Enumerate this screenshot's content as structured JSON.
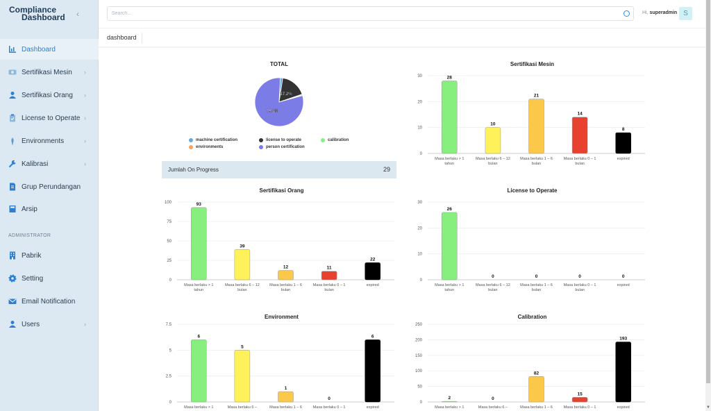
{
  "brand": {
    "line1": "Compliance",
    "line2": "Dashboard"
  },
  "sidebar": {
    "items": [
      {
        "label": "Dashboard",
        "icon": "bar-chart-icon",
        "active": true,
        "chevron": false
      },
      {
        "label": "Sertifikasi Mesin",
        "icon": "machine-icon",
        "chevron": true
      },
      {
        "label": "Sertifikasi Orang",
        "icon": "user-icon",
        "chevron": true
      },
      {
        "label": "License to Operate",
        "icon": "clipboard-icon",
        "chevron": true
      },
      {
        "label": "Environments",
        "icon": "leaf-icon",
        "chevron": true
      },
      {
        "label": "Kalibrasi",
        "icon": "wrench-icon",
        "chevron": true
      },
      {
        "label": "Grup Perundangan",
        "icon": "document-icon",
        "chevron": false
      },
      {
        "label": "Arsip",
        "icon": "archive-icon",
        "chevron": false
      }
    ],
    "admin_title": "ADMINISTRATOR",
    "admin_items": [
      {
        "label": "Pabrik",
        "icon": "building-icon",
        "chevron": false
      },
      {
        "label": "Setting",
        "icon": "gear-icon",
        "chevron": false
      },
      {
        "label": "Email Notification",
        "icon": "envelope-icon",
        "chevron": false
      },
      {
        "label": "Users",
        "icon": "user-icon",
        "chevron": true
      }
    ]
  },
  "topbar": {
    "search_placeholder": "Search...",
    "greeting": "Hi,",
    "username": "superadmin",
    "avatar_letter": "S"
  },
  "breadcrumb": "dashboard",
  "progress": {
    "label": "Jumlah On Progress",
    "value": "29"
  },
  "colors": {
    "green": "#86ef7e",
    "yellow": "#fff15a",
    "orange": "#fbc84a",
    "red": "#e8412f",
    "black": "#000000",
    "accent": "#2d7fd3"
  },
  "chart_data": [
    {
      "type": "pie",
      "title": "TOTAL",
      "slices": [
        {
          "name": "machine certification",
          "value": 1.6,
          "color": "#6aa7d8"
        },
        {
          "name": "license to operate",
          "value": 17.2,
          "color": "#333333",
          "label": "17.2%"
        },
        {
          "name": "calibration",
          "value": 0.3,
          "color": "#86ef7e"
        },
        {
          "name": "environments",
          "value": 0.6,
          "color": "#f7a35c"
        },
        {
          "name": "person certification",
          "value": 79.3,
          "color": "#7c7ce6",
          "label": "79.3%"
        }
      ]
    },
    {
      "type": "bar",
      "title": "Sertifikasi Mesin",
      "categories": [
        "Masa berlaku > 1 tahun",
        "Masa berlaku 6 – 12 bulan",
        "Masa berlaku 1 – 6 bulan",
        "Masa berlaku 0 – 1 bulan",
        "expired"
      ],
      "values": [
        28,
        10,
        21,
        14,
        8
      ],
      "ylim": [
        0,
        30
      ],
      "yticks": [
        0,
        10,
        20,
        30
      ]
    },
    {
      "type": "bar",
      "title": "Sertifikasi Orang",
      "categories": [
        "Masa berlaku > 1 tahun",
        "Masa berlaku 6 – 12 bulan",
        "Masa berlaku 1 – 6 bulan",
        "Masa berlaku 0 – 1 bulan",
        "expired"
      ],
      "values": [
        93,
        39,
        12,
        11,
        22
      ],
      "ylim": [
        0,
        100
      ],
      "yticks": [
        0,
        25,
        50,
        75,
        100
      ]
    },
    {
      "type": "bar",
      "title": "License to Operate",
      "categories": [
        "Masa berlaku > 1 tahun",
        "Masa berlaku 6 – 12 bulan",
        "Masa berlaku 1 – 6 bulan",
        "Masa berlaku 0 – 1 bulan",
        "expired"
      ],
      "values": [
        26,
        0,
        0,
        0,
        0
      ],
      "ylim": [
        0,
        30
      ],
      "yticks": [
        0,
        10,
        20,
        30
      ]
    },
    {
      "type": "bar",
      "title": "Environment",
      "categories": [
        "Masa berlaku > 1",
        "Masa berlaku 6 –",
        "Masa berlaku 1 – 6",
        "Masa berlaku 0 – 1",
        "expired"
      ],
      "values": [
        6,
        5,
        1,
        0,
        6
      ],
      "ylim": [
        0,
        7.5
      ],
      "yticks": [
        0,
        2.5,
        5,
        7.5
      ]
    },
    {
      "type": "bar",
      "title": "Calibration",
      "categories": [
        "Masa berlaku > 1",
        "Masa berlaku 6 –",
        "Masa berlaku 1 – 6",
        "Masa berlaku 0 – 1",
        "expired"
      ],
      "values": [
        2,
        0,
        82,
        15,
        193
      ],
      "ylim": [
        0,
        250
      ],
      "yticks": [
        0,
        50,
        100,
        150,
        200,
        250
      ]
    }
  ]
}
